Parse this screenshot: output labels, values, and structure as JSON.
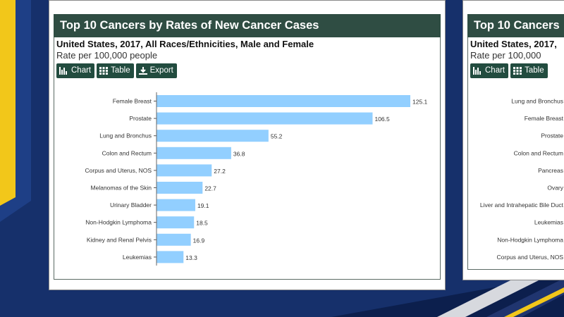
{
  "colors": {
    "bar": "#92cfff",
    "header_bg": "#2f4d43",
    "button_bg": "#224c3f",
    "stripe_yellow": "#f2c71a",
    "bg_navy": "#16306b"
  },
  "main_panel": {
    "title": "Top 10 Cancers by Rates of New Cancer Cases",
    "subtitle": "United States, 2017, All Races/Ethnicities, Male and Female",
    "rate_label": "Rate per 100,000 people",
    "buttons": {
      "chart": "Chart",
      "table": "Table",
      "export": "Export"
    }
  },
  "side_panel": {
    "title": "Top 10 Cancers",
    "subtitle": "United States, 2017,",
    "rate_label": "Rate per 100,000",
    "buttons": {
      "chart": "Chart",
      "table": "Table"
    },
    "categories": [
      "Lung and Bronchus",
      "Female Breast",
      "Prostate",
      "Colon and Rectum",
      "Pancreas",
      "Ovary",
      "Liver and Intrahepatic Bile Duct",
      "Leukemias",
      "Non-Hodgkin Lymphoma",
      "Corpus and Uterus, NOS"
    ]
  },
  "chart_data": {
    "type": "bar",
    "orientation": "horizontal",
    "title": "Top 10 Cancers by Rates of New Cancer Cases",
    "subtitle": "United States, 2017, All Races/Ethnicities, Male and Female",
    "ylabel": "Rate per 100,000 people",
    "categories": [
      "Female Breast",
      "Prostate",
      "Lung and Bronchus",
      "Colon and Rectum",
      "Corpus and Uterus, NOS",
      "Melanomas of the Skin",
      "Urinary Bladder",
      "Non-Hodgkin Lymphoma",
      "Kidney and Renal Pelvis",
      "Leukemias"
    ],
    "values": [
      125.1,
      106.5,
      55.2,
      36.8,
      27.2,
      22.7,
      19.1,
      18.5,
      16.9,
      13.3
    ],
    "value_labels": [
      "125.1",
      "106.5",
      "55.2",
      "36.8",
      "27.2",
      "22.7",
      "19.1",
      "18.5",
      "16.9",
      "13.3"
    ],
    "xlim": [
      0,
      125.1
    ],
    "grid": false,
    "legend": false
  }
}
